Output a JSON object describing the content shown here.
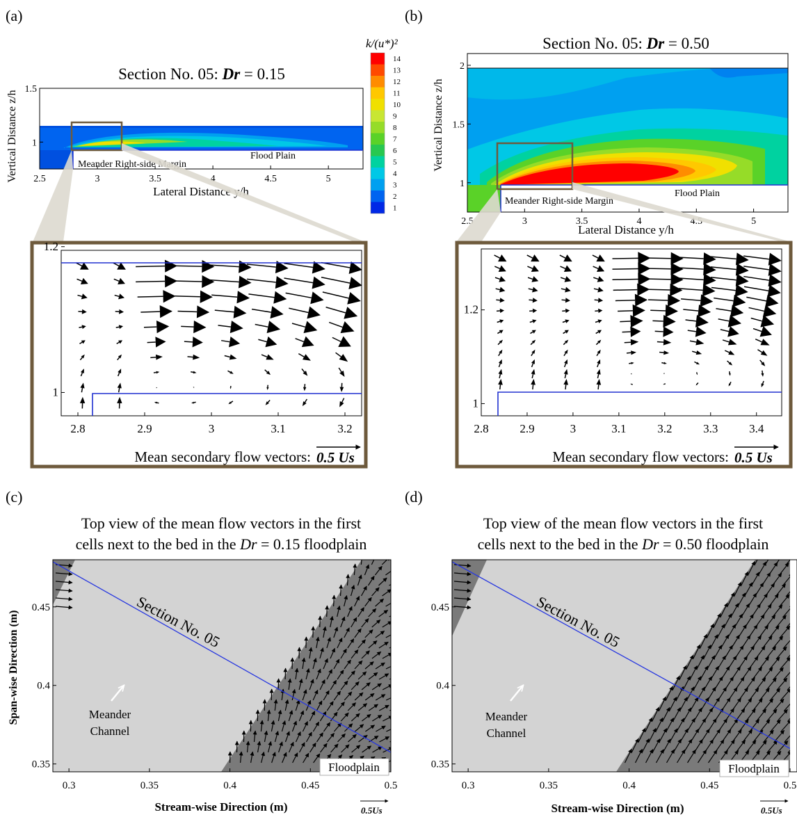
{
  "panels": {
    "a": {
      "letter": "(a)",
      "title_prefix": "Section No. 05: ",
      "title_var": "Dr",
      "title_suffix": " = 0.15",
      "ylabel": "Vertical Distance z/h",
      "xlabel": "Lateral Distance y/h",
      "xticks": [
        "2.5",
        "3",
        "3.5",
        "4",
        "4.5",
        "5"
      ],
      "yticks": [
        "1",
        "1.5"
      ],
      "annot_margin": "Meander Right-side Margin",
      "annot_floodplain": "Flood Plain",
      "zoom_xticks": [
        "2.8",
        "2.9",
        "3",
        "3.1",
        "3.2"
      ],
      "zoom_yticks": [
        "1",
        "1.2"
      ],
      "zoom_caption": "Mean secondary flow vectors:",
      "zoom_scale": "0.5 Us"
    },
    "b": {
      "letter": "(b)",
      "title_prefix": "Section No. 05: ",
      "title_var": "Dr",
      "title_suffix": " = 0.50",
      "ylabel": "Vertical Distance z/h",
      "xlabel": "Lateral Distance y/h",
      "xticks": [
        "2.5",
        "3",
        "3.5",
        "4",
        "4.5",
        "5"
      ],
      "yticks": [
        "1",
        "1.5",
        "2"
      ],
      "annot_margin": "Meander Right-side Margin",
      "annot_floodplain": "Flood Plain",
      "zoom_xticks": [
        "2.8",
        "2.9",
        "3",
        "3.1",
        "3.2",
        "3.3",
        "3.4"
      ],
      "zoom_yticks": [
        "1",
        "1.2"
      ],
      "zoom_caption": "Mean secondary flow vectors:",
      "zoom_scale": "0.5 Us"
    },
    "c": {
      "letter": "(c)",
      "title_line1": "Top view of the mean flow vectors in the first",
      "title_line2_prefix": "cells next to the bed in the ",
      "title_var": "Dr",
      "title_line2_suffix": " = 0.15 floodplain",
      "ylabel": "Span-wise Direction (m)",
      "xlabel": "Stream-wise Direction (m)",
      "xticks": [
        "0.3",
        "0.35",
        "0.4",
        "0.45",
        "0.5"
      ],
      "yticks": [
        "0.35",
        "0.4",
        "0.45"
      ],
      "section_label": "Section No. 05",
      "channel_label_1": "Meander",
      "channel_label_2": "Channel",
      "floodplain_label": "Floodplain",
      "scale_label": "0.5Us"
    },
    "d": {
      "letter": "(d)",
      "title_line1": "Top view of the mean flow vectors in the first",
      "title_line2_prefix": "cells next to the bed in the ",
      "title_var": "Dr",
      "title_line2_suffix": " = 0.50 floodplain",
      "ylabel": "Span-wise Direction (m)",
      "xlabel": "Stream-wise Direction (m)",
      "xticks": [
        "0.3",
        "0.35",
        "0.4",
        "0.45",
        "0.5"
      ],
      "yticks": [
        "0.35",
        "0.4",
        "0.45"
      ],
      "section_label": "Section No. 05",
      "channel_label_1": "Meander",
      "channel_label_2": "Channel",
      "floodplain_label": "Floodplain",
      "scale_label": "0.5Us"
    }
  },
  "colorbar": {
    "title": "k/(u*)²",
    "labels": [
      "14",
      "13",
      "12",
      "11",
      "10",
      "9",
      "8",
      "7",
      "6",
      "5",
      "4",
      "3",
      "2",
      "1"
    ],
    "colors": [
      "#ff0000",
      "#ff4a00",
      "#ff8c00",
      "#ffc800",
      "#f0e000",
      "#c8e632",
      "#96dc28",
      "#5ad228",
      "#28c850",
      "#00d2a0",
      "#00c8e6",
      "#00a0f0",
      "#0064f0",
      "#0028e6"
    ]
  },
  "chart_data": [
    {
      "type": "heatmap",
      "title": "Section No. 05: Dr = 0.15",
      "xlabel": "Lateral Distance y/h",
      "ylabel": "Vertical Distance z/h",
      "xlim": [
        2.5,
        5.3
      ],
      "ylim": [
        0.75,
        1.5
      ],
      "zlabel": "k/(u*)²",
      "zlim": [
        1,
        14
      ]
    },
    {
      "type": "heatmap",
      "title": "Section No. 05: Dr = 0.50",
      "xlabel": "Lateral Distance y/h",
      "ylabel": "Vertical Distance z/h",
      "xlim": [
        2.5,
        5.3
      ],
      "ylim": [
        0.75,
        2.1
      ],
      "zlabel": "k/(u*)²",
      "zlim": [
        1,
        14
      ]
    },
    {
      "type": "scatter",
      "title": "Top view of the mean flow vectors in the first cells next to the bed in the Dr = 0.15 floodplain",
      "xlabel": "Stream-wise Direction (m)",
      "ylabel": "Span-wise Direction (m)",
      "xlim": [
        0.29,
        0.5
      ],
      "ylim": [
        0.345,
        0.48
      ]
    },
    {
      "type": "scatter",
      "title": "Top view of the mean flow vectors in the first cells next to the bed in the Dr = 0.50 floodplain",
      "xlabel": "Stream-wise Direction (m)",
      "ylabel": "Span-wise Direction (m)",
      "xlim": [
        0.29,
        0.5
      ],
      "ylim": [
        0.345,
        0.48
      ]
    }
  ]
}
